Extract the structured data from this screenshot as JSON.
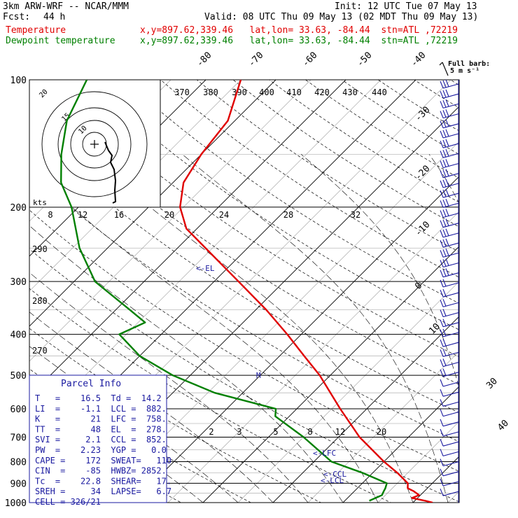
{
  "header": {
    "model": "3km ARW-WRF -- NCAR/MMM",
    "init": "Init: 12 UTC Tue 07 May 13",
    "fcst_label": "Fcst:",
    "fcst_value": "44 h",
    "valid": "Valid: 08 UTC Thu 09 May 13 (02 MDT Thu 09 May 13)",
    "series1_label": "Temperature",
    "series2_label": "Dewpoint temperature",
    "series1_info": "x,y=897.62,339.46   lat,lon= 33.63, -84.44  stn=ATL ,72219",
    "series2_info": "x,y=897.62,339.46   lat,lon= 33.63, -84.44  stn=ATL ,72219"
  },
  "barb_legend": {
    "line1": "Full barb:",
    "line2": "5 m s⁻¹"
  },
  "colors": {
    "temperature": "#e00000",
    "dewpoint": "#008000",
    "annotation": "#1a1aa0",
    "hodograph": "#000000"
  },
  "chart_data": {
    "type": "line",
    "chart_kind": "skew-T log-p",
    "y_scale": "log",
    "ylim": [
      1000,
      100
    ],
    "pressure_labels": [
      "100",
      "200",
      "300",
      "400",
      "500",
      "600",
      "700",
      "800",
      "900",
      "1000"
    ],
    "isotherm_labels": [
      "-80",
      "-70",
      "-60",
      "-50",
      "-40",
      "-30",
      "-20",
      "-10",
      "0",
      "10",
      "20",
      "30",
      "40"
    ],
    "theta_labels": [
      "370",
      "380",
      "390",
      "400",
      "410",
      "420",
      "430",
      "440"
    ],
    "theta_labels_left": [
      "290",
      "280",
      "270"
    ],
    "mixing_ratio_labels": [
      "2",
      "3",
      "5",
      "8",
      "12",
      "20"
    ],
    "thetae_labels": [
      "8",
      "12",
      "16",
      "20",
      "24",
      "28",
      "32"
    ],
    "series": [
      {
        "name": "Temperature",
        "points": [
          [
            1000,
            22.8
          ],
          [
            990,
            21.5
          ],
          [
            975,
            19.2
          ],
          [
            960,
            19.8
          ],
          [
            940,
            18.5
          ],
          [
            925,
            17.2
          ],
          [
            900,
            16.5
          ],
          [
            850,
            13.5
          ],
          [
            800,
            10.0
          ],
          [
            700,
            3.0
          ],
          [
            600,
            -3.8
          ],
          [
            500,
            -11.5
          ],
          [
            450,
            -16.5
          ],
          [
            400,
            -22.0
          ],
          [
            350,
            -28.5
          ],
          [
            300,
            -36.5
          ],
          [
            250,
            -46.0
          ],
          [
            225,
            -51.5
          ],
          [
            200,
            -55.5
          ],
          [
            175,
            -58.5
          ],
          [
            150,
            -60.0
          ],
          [
            125,
            -61.0
          ],
          [
            100,
            -65.0
          ]
        ]
      },
      {
        "name": "Dewpoint temperature",
        "points": [
          [
            990,
            13.5
          ],
          [
            975,
            14.0
          ],
          [
            960,
            14.5
          ],
          [
            940,
            14.2
          ],
          [
            925,
            14.0
          ],
          [
            900,
            13.5
          ],
          [
            850,
            8.5
          ],
          [
            800,
            2.5
          ],
          [
            700,
            -5.0
          ],
          [
            625,
            -12.0
          ],
          [
            600,
            -13.0
          ],
          [
            550,
            -24.0
          ],
          [
            500,
            -32.5
          ],
          [
            450,
            -40.0
          ],
          [
            400,
            -46.0
          ],
          [
            375,
            -44.0
          ],
          [
            350,
            -48.0
          ],
          [
            300,
            -57.0
          ],
          [
            250,
            -64.0
          ],
          [
            200,
            -71.0
          ],
          [
            175,
            -76.0
          ],
          [
            150,
            -80.0
          ],
          [
            125,
            -84.0
          ],
          [
            100,
            -87.0
          ]
        ]
      }
    ],
    "annotations": [
      "EL",
      "LFC",
      "CCL",
      "LCL",
      "M"
    ]
  },
  "hodograph": {
    "rings": [
      "5",
      "10",
      "15",
      "20"
    ],
    "axis_labels": [
      "8",
      "12",
      "16",
      "20",
      "24",
      "28",
      "32"
    ],
    "kts_label": "kts"
  },
  "parcel_info": {
    "title": "Parcel Info",
    "rows": [
      "T   =    16.5  Td =  14.2",
      "LI  =    -1.1  LCL =  882.",
      "K   =      21  LFC =  758.",
      "TT  =      48  EL  =  278.",
      "SVI =     2.1  CCL =  852.",
      "PW  =    2.23  YGP =   0.0",
      "CAPE =    172  SWEAT=   110",
      "CIN  =    -85  HWBZ= 2852.",
      "Tc  =    22.8  SHEAR=   17.",
      "SREH =     34  LAPSE=   6.7",
      "CELL = 326/21"
    ]
  }
}
